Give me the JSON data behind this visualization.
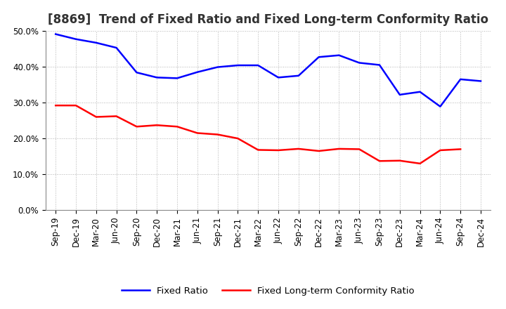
{
  "title": "[8869]  Trend of Fixed Ratio and Fixed Long-term Conformity Ratio",
  "x_labels": [
    "Sep-19",
    "Dec-19",
    "Mar-20",
    "Jun-20",
    "Sep-20",
    "Dec-20",
    "Mar-21",
    "Jun-21",
    "Sep-21",
    "Dec-21",
    "Mar-22",
    "Jun-22",
    "Sep-22",
    "Dec-22",
    "Mar-23",
    "Jun-23",
    "Sep-23",
    "Dec-23",
    "Mar-24",
    "Jun-24",
    "Sep-24",
    "Dec-24"
  ],
  "fixed_ratio": [
    0.491,
    0.477,
    0.467,
    0.453,
    0.384,
    0.37,
    0.368,
    0.385,
    0.399,
    0.404,
    0.404,
    0.37,
    0.375,
    0.427,
    0.432,
    0.411,
    0.405,
    0.322,
    0.33,
    0.289,
    0.365,
    0.36
  ],
  "fixed_lt_ratio": [
    0.292,
    0.292,
    0.26,
    0.262,
    0.233,
    0.237,
    0.233,
    0.215,
    0.211,
    0.2,
    0.168,
    0.167,
    0.171,
    0.165,
    0.171,
    0.17,
    0.137,
    0.138,
    0.13,
    0.167,
    0.17,
    null
  ],
  "fixed_ratio_color": "#0000FF",
  "fixed_lt_ratio_color": "#FF0000",
  "background_color": "#FFFFFF",
  "plot_bg_color": "#FFFFFF",
  "ylim": [
    0.0,
    0.5
  ],
  "yticks": [
    0.0,
    0.1,
    0.2,
    0.3,
    0.4,
    0.5
  ],
  "grid_color": "#AAAAAA",
  "legend_fixed_ratio": "Fixed Ratio",
  "legend_fixed_lt_ratio": "Fixed Long-term Conformity Ratio",
  "title_fontsize": 12,
  "axis_fontsize": 8.5,
  "legend_fontsize": 9.5,
  "line_width": 1.8
}
